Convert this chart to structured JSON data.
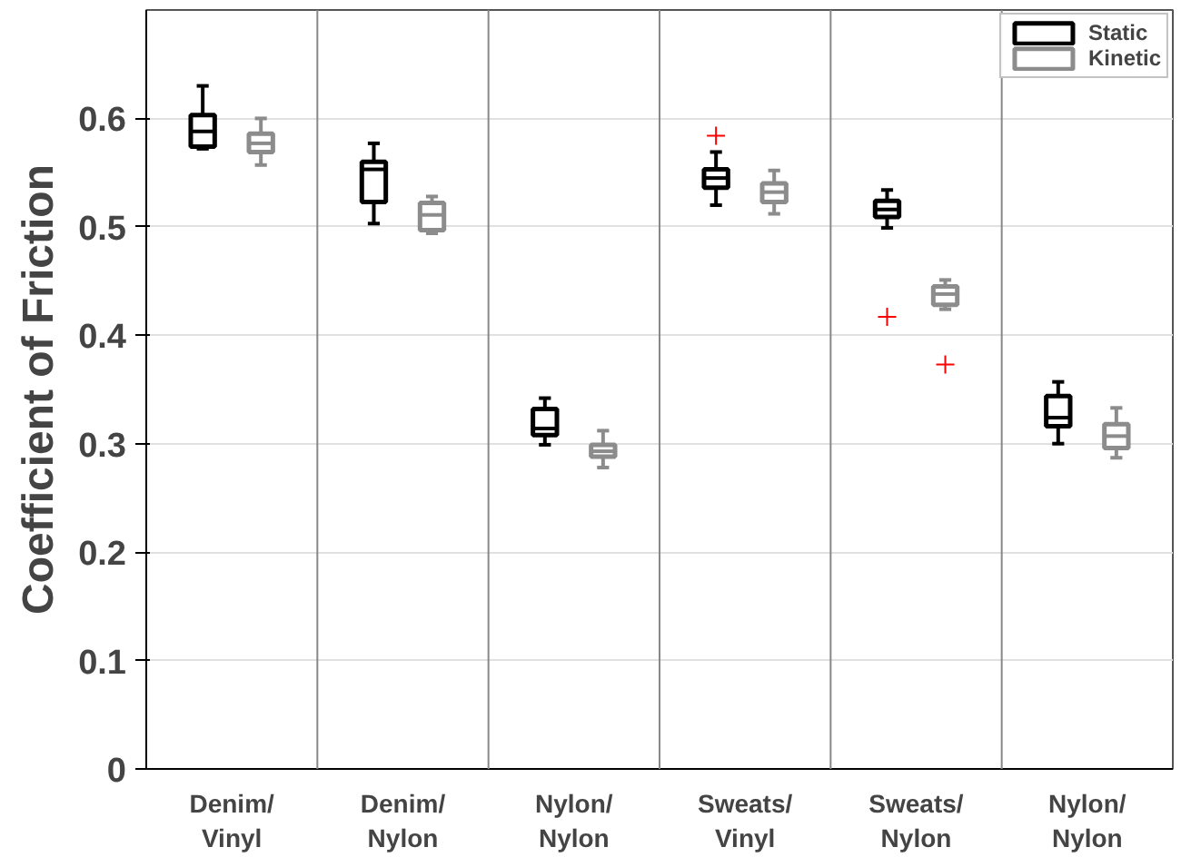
{
  "chart_data": {
    "type": "box",
    "ylabel": "Coefficient of Friction",
    "categories": [
      "Denim/\nVinyl",
      "Denim/\nNylon",
      "Nylon/\nNylon",
      "Sweats/\nVinyl",
      "Sweats/\nNylon",
      "Nylon/\nNylon"
    ],
    "ylim": [
      0,
      0.7
    ],
    "yticks": [
      0,
      0.1,
      0.2,
      0.3,
      0.4,
      0.5,
      0.6
    ],
    "grid": "y",
    "legend": "top right",
    "series": [
      {
        "name": "Static",
        "color": "#000000",
        "boxes": [
          {
            "low": 0.572,
            "q1": 0.574,
            "median": 0.588,
            "q3": 0.603,
            "high": 0.63
          },
          {
            "low": 0.503,
            "q1": 0.523,
            "median": 0.553,
            "q3": 0.56,
            "high": 0.577
          },
          {
            "low": 0.299,
            "q1": 0.308,
            "median": 0.314,
            "q3": 0.332,
            "high": 0.342
          },
          {
            "low": 0.52,
            "q1": 0.536,
            "median": 0.545,
            "q3": 0.553,
            "high": 0.569,
            "outliers": [
              0.584
            ]
          },
          {
            "low": 0.499,
            "q1": 0.509,
            "median": 0.516,
            "q3": 0.524,
            "high": 0.534,
            "outliers": [
              0.417
            ]
          },
          {
            "low": 0.3,
            "q1": 0.316,
            "median": 0.324,
            "q3": 0.344,
            "high": 0.357
          }
        ]
      },
      {
        "name": "Kinetic",
        "color": "#8c8c8c",
        "boxes": [
          {
            "low": 0.557,
            "q1": 0.569,
            "median": 0.577,
            "q3": 0.586,
            "high": 0.6
          },
          {
            "low": 0.494,
            "q1": 0.497,
            "median": 0.511,
            "q3": 0.522,
            "high": 0.528
          },
          {
            "low": 0.278,
            "q1": 0.288,
            "median": 0.293,
            "q3": 0.299,
            "high": 0.312
          },
          {
            "low": 0.512,
            "q1": 0.523,
            "median": 0.532,
            "q3": 0.54,
            "high": 0.552
          },
          {
            "low": 0.424,
            "q1": 0.428,
            "median": 0.438,
            "q3": 0.445,
            "high": 0.451,
            "outliers": [
              0.373
            ]
          },
          {
            "low": 0.287,
            "q1": 0.296,
            "median": 0.307,
            "q3": 0.318,
            "high": 0.333
          }
        ]
      }
    ]
  }
}
